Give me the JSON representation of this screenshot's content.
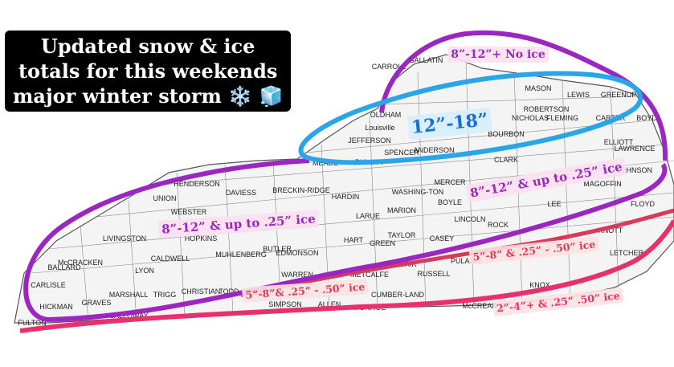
{
  "title": [
    "Updated snow & ice",
    "totals for this weekends",
    "major winter storm ❄️ 🧊"
  ],
  "zones": [
    "8”-12”+ No ice",
    "12”-18”",
    "8”-12” & up to .25” ice",
    "8”-12” & up to .25” ice",
    "5”-8” & .25” - .50” ice",
    "5”-8”& .25” - .50” ice",
    "2”-4”+ & .25” .50” ice"
  ],
  "counties": [
    "CARROLL",
    "GALLATIN",
    "MASON",
    "LEWIS",
    "GREENUP",
    "OLDHAM",
    "ROBERTSON",
    "NICHOLAS",
    "FLEMING",
    "CARTER",
    "BOYD",
    "Louisville",
    "JEFFERSON",
    "BOURBON",
    "ELLIOTT",
    "LAWRENCE",
    "SPENCER",
    "ANDERSON",
    "CLARK",
    "MEADE",
    "BULLITT",
    "JOHNSON",
    "HENDERSON",
    "BRECKIN-RIDGE",
    "UNION",
    "DAVIESS",
    "HARDIN",
    "WASHING-TON",
    "MERCER",
    "BOYLE",
    "MAGOFFIN",
    "WEBSTER",
    "MARION",
    "LEE",
    "FLOYD",
    "LARUE",
    "LINCOLN",
    "ROCK",
    "KNOTT",
    "HART",
    "TAYLOR",
    "CASEY",
    "GREEN",
    "LIVINGSTON",
    "CALDWELL",
    "BUTLER",
    "EDMONSON",
    "HOPKINS",
    "MUHLENBERG",
    "BALLARD",
    "McCRACKEN",
    "LYON",
    "ADAIR",
    "RUSSELL",
    "LETCHER",
    "CARLISLE",
    "MARSHALL",
    "TRIGG",
    "CHRISTIAN",
    "TODD",
    "WARREN",
    "METCALFE",
    "PULASKI",
    "HICKMAN",
    "GRAVES",
    "CALLOWAY",
    "SIMPSON",
    "ALLEN",
    "MONROE",
    "CUMBER-LAND",
    "McCREARY",
    "KNOX",
    "FULTON"
  ]
}
